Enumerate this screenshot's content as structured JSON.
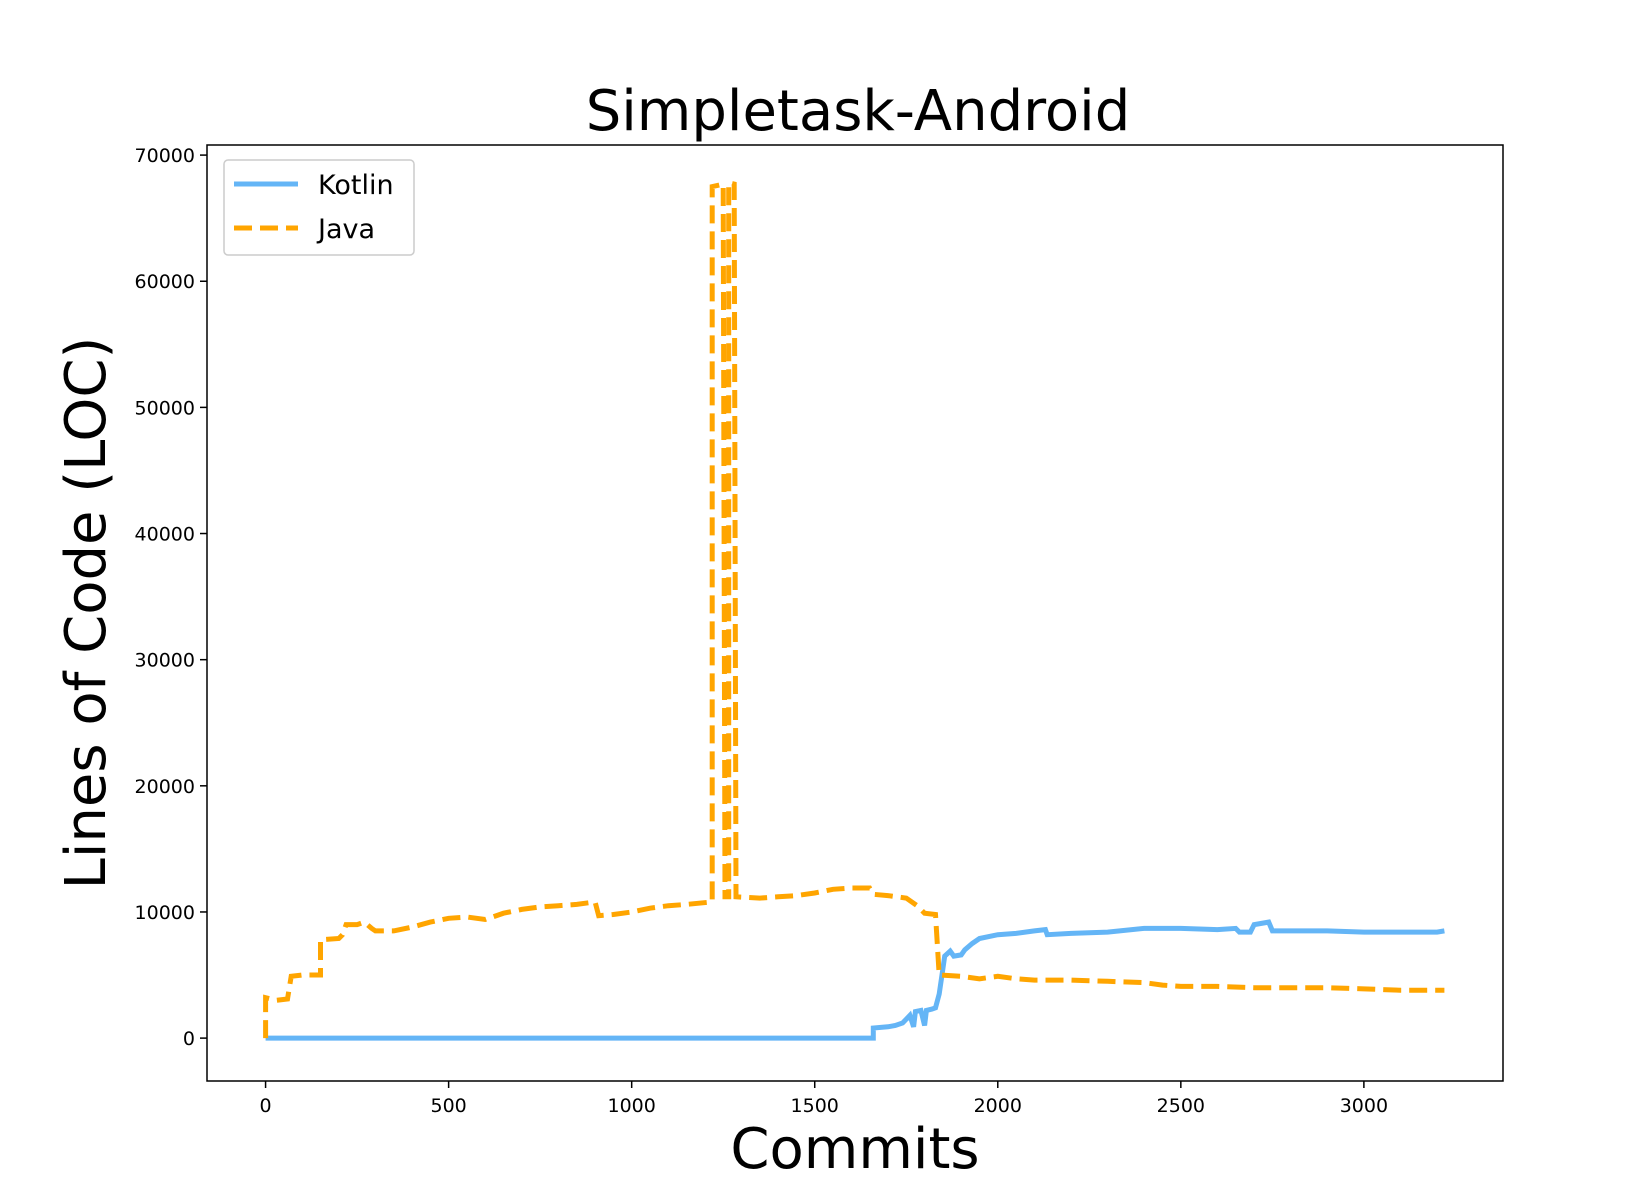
{
  "chart_data": {
    "type": "line",
    "title": "Simpletask-Android",
    "xlabel": "Commits",
    "ylabel": "Lines of Code (LOC)",
    "xlim": [
      -160,
      3380
    ],
    "ylim": [
      -3400,
      70800
    ],
    "xticks": [
      0,
      500,
      1000,
      1500,
      2000,
      2500,
      3000
    ],
    "yticks": [
      0,
      10000,
      20000,
      30000,
      40000,
      50000,
      60000,
      70000
    ],
    "grid": false,
    "legend_position": "top-left",
    "series": [
      {
        "name": "Kotlin",
        "color": "#64b5f6",
        "style": "solid",
        "points": [
          [
            0,
            0
          ],
          [
            1660,
            0
          ],
          [
            1660,
            800
          ],
          [
            1700,
            900
          ],
          [
            1720,
            1000
          ],
          [
            1740,
            1200
          ],
          [
            1760,
            1800
          ],
          [
            1770,
            900
          ],
          [
            1775,
            2100
          ],
          [
            1790,
            2200
          ],
          [
            1800,
            1000
          ],
          [
            1805,
            2200
          ],
          [
            1820,
            2300
          ],
          [
            1830,
            2400
          ],
          [
            1840,
            3500
          ],
          [
            1850,
            5500
          ],
          [
            1855,
            6500
          ],
          [
            1870,
            6900
          ],
          [
            1880,
            6500
          ],
          [
            1900,
            6600
          ],
          [
            1910,
            7000
          ],
          [
            1930,
            7500
          ],
          [
            1950,
            7900
          ],
          [
            2000,
            8200
          ],
          [
            2050,
            8300
          ],
          [
            2100,
            8500
          ],
          [
            2130,
            8600
          ],
          [
            2135,
            8200
          ],
          [
            2200,
            8300
          ],
          [
            2300,
            8400
          ],
          [
            2400,
            8700
          ],
          [
            2500,
            8700
          ],
          [
            2600,
            8600
          ],
          [
            2650,
            8700
          ],
          [
            2660,
            8400
          ],
          [
            2690,
            8400
          ],
          [
            2700,
            9000
          ],
          [
            2740,
            9200
          ],
          [
            2750,
            8500
          ],
          [
            2800,
            8500
          ],
          [
            2900,
            8500
          ],
          [
            3000,
            8400
          ],
          [
            3100,
            8400
          ],
          [
            3200,
            8400
          ],
          [
            3220,
            8500
          ]
        ]
      },
      {
        "name": "Java",
        "color": "#ffa500",
        "style": "dashed",
        "points": [
          [
            0,
            0
          ],
          [
            0,
            3200
          ],
          [
            30,
            3000
          ],
          [
            60,
            3100
          ],
          [
            70,
            4900
          ],
          [
            100,
            5000
          ],
          [
            150,
            5000
          ],
          [
            150,
            7800
          ],
          [
            200,
            7900
          ],
          [
            210,
            8200
          ],
          [
            220,
            9000
          ],
          [
            250,
            9000
          ],
          [
            270,
            9200
          ],
          [
            290,
            8700
          ],
          [
            300,
            8500
          ],
          [
            350,
            8500
          ],
          [
            400,
            8800
          ],
          [
            450,
            9200
          ],
          [
            500,
            9500
          ],
          [
            550,
            9600
          ],
          [
            600,
            9400
          ],
          [
            650,
            9900
          ],
          [
            700,
            10200
          ],
          [
            750,
            10400
          ],
          [
            800,
            10500
          ],
          [
            850,
            10600
          ],
          [
            900,
            10800
          ],
          [
            910,
            9700
          ],
          [
            950,
            9800
          ],
          [
            1000,
            10000
          ],
          [
            1050,
            10300
          ],
          [
            1100,
            10500
          ],
          [
            1150,
            10600
          ],
          [
            1220,
            10800
          ],
          [
            1220,
            67500
          ],
          [
            1250,
            67700
          ],
          [
            1255,
            11200
          ],
          [
            1265,
            11200
          ],
          [
            1265,
            67800
          ],
          [
            1280,
            67700
          ],
          [
            1285,
            11200
          ],
          [
            1350,
            11100
          ],
          [
            1400,
            11200
          ],
          [
            1450,
            11300
          ],
          [
            1500,
            11500
          ],
          [
            1550,
            11800
          ],
          [
            1600,
            11900
          ],
          [
            1650,
            11900
          ],
          [
            1660,
            11400
          ],
          [
            1700,
            11300
          ],
          [
            1750,
            11100
          ],
          [
            1780,
            10500
          ],
          [
            1800,
            9900
          ],
          [
            1830,
            9800
          ],
          [
            1840,
            5000
          ],
          [
            1900,
            4900
          ],
          [
            1950,
            4700
          ],
          [
            2000,
            4900
          ],
          [
            2050,
            4700
          ],
          [
            2100,
            4600
          ],
          [
            2150,
            4600
          ],
          [
            2200,
            4600
          ],
          [
            2300,
            4500
          ],
          [
            2400,
            4400
          ],
          [
            2450,
            4200
          ],
          [
            2500,
            4100
          ],
          [
            2600,
            4100
          ],
          [
            2700,
            4000
          ],
          [
            2800,
            4000
          ],
          [
            2900,
            4000
          ],
          [
            3000,
            3900
          ],
          [
            3100,
            3800
          ],
          [
            3220,
            3800
          ]
        ]
      }
    ]
  }
}
